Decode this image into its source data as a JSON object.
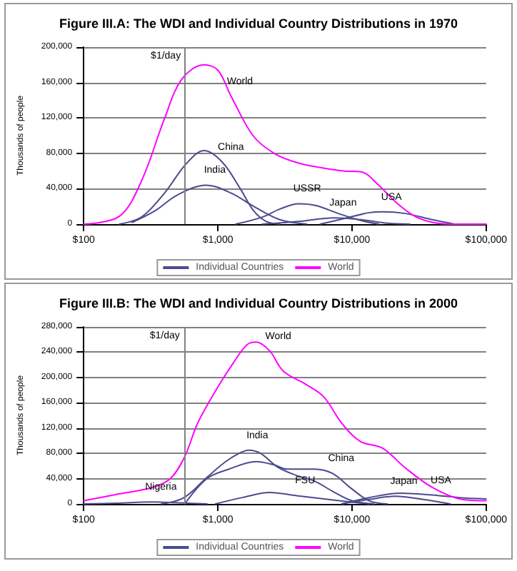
{
  "chart_data": [
    {
      "type": "line",
      "title": "Figure III.A: The WDI and Individual Country Distributions in 1970",
      "ylabel": "Thousands of people",
      "log": "x",
      "grid": "y",
      "legend": "bottom",
      "marker": "none",
      "line_style": "solid",
      "xlim": [
        100,
        100000
      ],
      "xticks": [
        {
          "value": 100,
          "label": "$100"
        },
        {
          "value": 1000,
          "label": "$1,000"
        },
        {
          "value": 10000,
          "label": "$10,000"
        },
        {
          "value": 100000,
          "label": "$100,000"
        }
      ],
      "ylim": [
        0,
        200000
      ],
      "yticks": [
        0,
        {
          "value": 40000,
          "label": "40,000"
        },
        {
          "value": 80000,
          "label": "80,000"
        },
        {
          "value": 120000,
          "label": "120,000"
        },
        {
          "value": 160000,
          "label": "160,000"
        },
        {
          "value": 200000,
          "label": "200,000"
        }
      ],
      "ref_lines": [
        {
          "axis": "x",
          "value": 570,
          "label": "$1/day",
          "color": "#808080"
        }
      ],
      "series": [
        {
          "name": "Individual Countries",
          "color": "#4b4b8f",
          "x": [
            185,
            270,
            400,
            580,
            790,
            1080,
            1470,
            1850,
            2300,
            2900
          ],
          "values": [
            0,
            8000,
            35000,
            68000,
            83000,
            70000,
            40000,
            15000,
            3000,
            0
          ]
        },
        {
          "color": "#4b4b8f",
          "x": [
            230,
            340,
            500,
            820,
            1260,
            1850,
            2900,
            4600
          ],
          "values": [
            2000,
            15000,
            33000,
            44000,
            35000,
            20000,
            5000,
            0
          ]
        },
        {
          "color": "#4b4b8f",
          "x": [
            1360,
            2150,
            2900,
            4000,
            5400,
            7900,
            11700,
            15800
          ],
          "values": [
            0,
            8000,
            17000,
            23000,
            21000,
            12000,
            4000,
            0
          ]
        },
        {
          "color": "#4b4b8f",
          "x": [
            2150,
            4000,
            7400,
            11700,
            18500,
            27000
          ],
          "values": [
            0,
            3000,
            7000,
            5000,
            1000,
            0
          ]
        },
        {
          "color": "#4b4b8f",
          "x": [
            5800,
            8600,
            13500,
            17000,
            25000,
            39800,
            58000
          ],
          "values": [
            0,
            6000,
            13000,
            14000,
            12000,
            5000,
            0
          ]
        },
        {
          "name": "World",
          "color": "#ff00ff",
          "x": [
            100,
            185,
            270,
            400,
            540,
            790,
            1000,
            1260,
            1850,
            2700,
            4000,
            5800,
            8600,
            11700,
            15800,
            21500,
            29300,
            39800,
            54000,
            100000
          ],
          "values": [
            0,
            9000,
            49000,
            119000,
            164000,
            180000,
            174000,
            144000,
            99000,
            79000,
            69000,
            64000,
            60000,
            59000,
            44000,
            24000,
            9000,
            2000,
            0,
            0
          ]
        }
      ],
      "annotations": [
        {
          "text": "World",
          "x": 1260,
          "y": 144000
        },
        {
          "text": "China",
          "x": 1080,
          "y": 70000
        },
        {
          "text": "India",
          "x": 820,
          "y": 44000
        },
        {
          "text": "USSR",
          "x": 4000,
          "y": 23000
        },
        {
          "text": "Japan",
          "x": 7400,
          "y": 7000
        },
        {
          "text": "USA",
          "x": 17000,
          "y": 14000
        }
      ]
    },
    {
      "type": "line",
      "title": "Figure III.B: The WDI and Individual Country Distributions in 2000",
      "ylabel": "Thousands of people",
      "log": "x",
      "grid": "y",
      "legend": "bottom",
      "marker": "none",
      "line_style": "solid",
      "xlim": [
        100,
        100000
      ],
      "xticks": [
        {
          "value": 100,
          "label": "$100"
        },
        {
          "value": 1000,
          "label": "$1,000"
        },
        {
          "value": 10000,
          "label": "$10,000"
        },
        {
          "value": 100000,
          "label": "$100,000"
        }
      ],
      "ylim": [
        0,
        280000
      ],
      "yticks": [
        0,
        {
          "value": 40000,
          "label": "40,000"
        },
        {
          "value": 80000,
          "label": "80,000"
        },
        {
          "value": 120000,
          "label": "120,000"
        },
        {
          "value": 160000,
          "label": "160,000"
        },
        {
          "value": 200000,
          "label": "200,000"
        },
        {
          "value": 240000,
          "label": "240,000"
        },
        {
          "value": 280000,
          "label": "280,000"
        }
      ],
      "ref_lines": [
        {
          "axis": "x",
          "value": 560,
          "label": "$1/day",
          "color": "#808080"
        }
      ],
      "series": [
        {
          "name": "Individual Countries",
          "color": "#4b4b8f",
          "x": [
            380,
            560,
            830,
            1130,
            1440,
            1700,
            2080,
            2800,
            3860,
            5260,
            7170,
            10000,
            14500
          ],
          "values": [
            0,
            10000,
            42000,
            66000,
            80000,
            85000,
            80000,
            58000,
            45000,
            36000,
            20000,
            5000,
            0
          ]
        },
        {
          "color": "#4b4b8f",
          "x": [
            567,
            830,
            1210,
            1930,
            2600,
            3300,
            5260,
            7170,
            9800,
            13400,
            18300
          ],
          "values": [
            0,
            40000,
            55000,
            67000,
            62000,
            55000,
            55000,
            48000,
            25000,
            5000,
            0
          ]
        },
        {
          "color": "#4b4b8f",
          "x": [
            960,
            1520,
            2440,
            3860,
            6200,
            9800,
            13400
          ],
          "values": [
            0,
            10000,
            18000,
            13000,
            8000,
            3000,
            0
          ]
        },
        {
          "color": "#4b4b8f",
          "x": [
            8400,
            13400,
            21000,
            34000,
            54000
          ],
          "values": [
            0,
            7000,
            12000,
            7000,
            0
          ]
        },
        {
          "color": "#4b4b8f",
          "x": [
            8400,
            13400,
            23000,
            39700,
            63000,
            100000
          ],
          "values": [
            0,
            10000,
            17000,
            14000,
            10000,
            8000
          ]
        },
        {
          "color": "#4b4b8f",
          "x": [
            100,
            175,
            325,
            480,
            830
          ],
          "values": [
            0,
            1000,
            3000,
            2000,
            0
          ]
        },
        {
          "name": "World",
          "color": "#ff00ff",
          "x": [
            100,
            175,
            325,
            443,
            567,
            705,
            962,
            1313,
            1656,
            1931,
            2436,
            3077,
            4539,
            6180,
            8433,
            11500,
            16950,
            24950,
            39700,
            63200,
            100000
          ],
          "values": [
            5000,
            15000,
            26000,
            40000,
            75000,
            127000,
            179000,
            224000,
            252000,
            256000,
            242000,
            210000,
            189000,
            169000,
            127000,
            99000,
            88000,
            57000,
            26000,
            8000,
            5000
          ]
        }
      ],
      "annotations": [
        {
          "text": "World",
          "x": 2436,
          "y": 242000
        },
        {
          "text": "India",
          "x": 1700,
          "y": 85000
        },
        {
          "text": "China",
          "x": 7170,
          "y": 48000
        },
        {
          "text": "FSU",
          "x": 3860,
          "y": 13000
        },
        {
          "text": "Japan",
          "x": 21000,
          "y": 12000
        },
        {
          "text": "USA",
          "x": 39700,
          "y": 14000
        },
        {
          "text": "Nigeria",
          "x": 325,
          "y": 3000
        }
      ]
    }
  ]
}
